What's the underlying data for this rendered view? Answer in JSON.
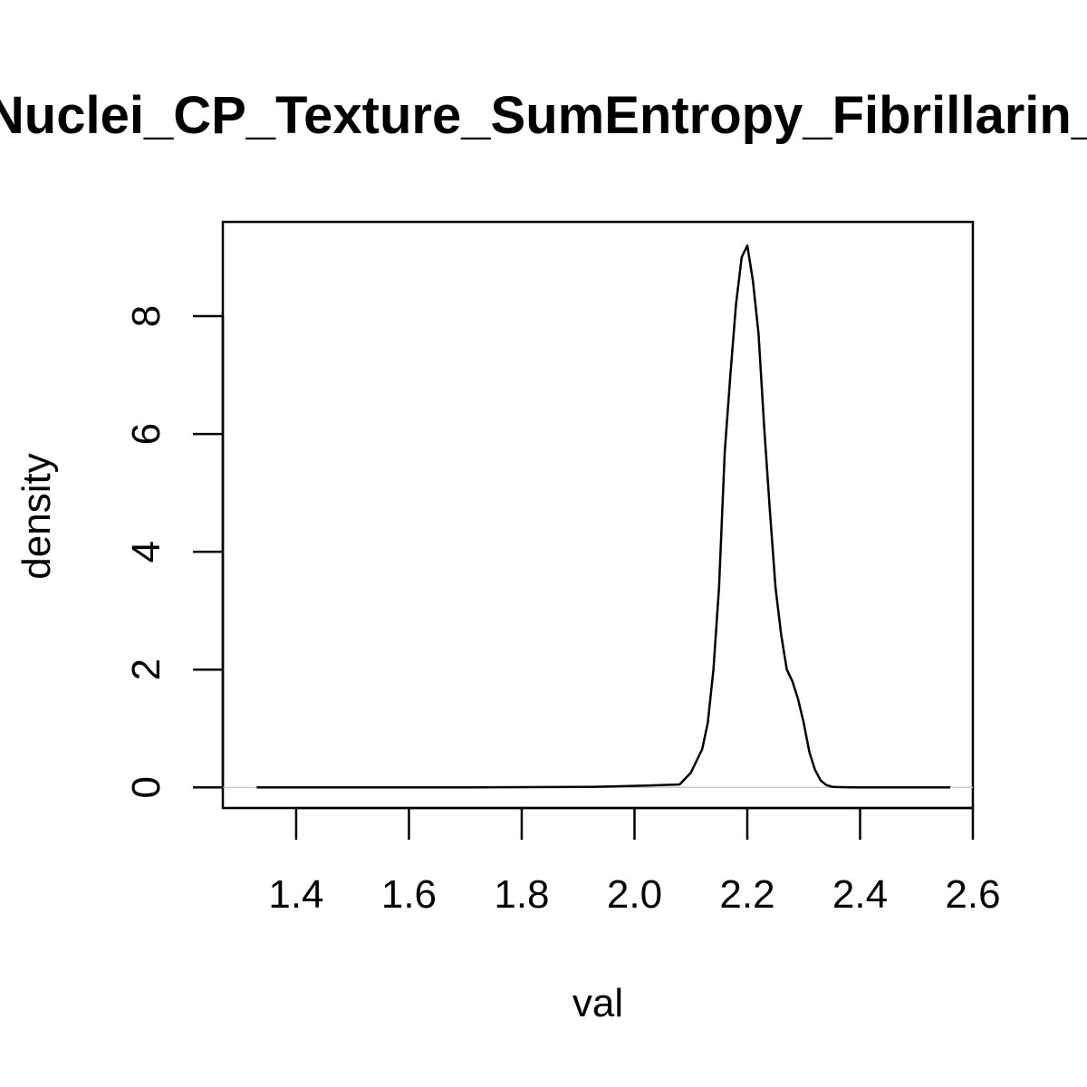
{
  "chart_data": {
    "type": "line",
    "title": "Nuclei_CP_Texture_SumEntropy_Fibrillarin_",
    "xlabel": "val",
    "ylabel": "density",
    "xlim": [
      1.27,
      2.6
    ],
    "ylim": [
      -0.35,
      9.6
    ],
    "x_ticks": [
      1.4,
      1.6,
      1.8,
      2.0,
      2.2,
      2.4,
      2.6
    ],
    "x_tick_labels": [
      "1.4",
      "1.6",
      "1.8",
      "2.0",
      "2.2",
      "2.4",
      "2.6"
    ],
    "y_ticks": [
      0,
      2,
      4,
      6,
      8
    ],
    "y_tick_labels": [
      "0",
      "2",
      "4",
      "6",
      "8"
    ],
    "grid": false,
    "zero_line": true,
    "colors": {
      "line": "#000000",
      "zero_line": "#cccccc",
      "frame": "#000000"
    },
    "series": [
      {
        "x": [
          1.33,
          1.5,
          1.7,
          1.85,
          1.93,
          1.98,
          2.02,
          2.05,
          2.08,
          2.1,
          2.12,
          2.13,
          2.14,
          2.15,
          2.16,
          2.17,
          2.18,
          2.19,
          2.2,
          2.21,
          2.22,
          2.23,
          2.24,
          2.25,
          2.26,
          2.27,
          2.28,
          2.29,
          2.3,
          2.31,
          2.32,
          2.33,
          2.34,
          2.35,
          2.36,
          2.38,
          2.4,
          2.45,
          2.5,
          2.56
        ],
        "y": [
          0,
          0,
          0,
          0.005,
          0.01,
          0.02,
          0.03,
          0.04,
          0.05,
          0.25,
          0.65,
          1.1,
          2.0,
          3.4,
          5.7,
          7.0,
          8.2,
          9.0,
          9.2,
          8.6,
          7.7,
          6.1,
          4.7,
          3.4,
          2.6,
          2.0,
          1.8,
          1.5,
          1.1,
          0.6,
          0.3,
          0.12,
          0.04,
          0.01,
          0.005,
          0.002,
          0.001,
          0,
          0,
          0
        ]
      }
    ]
  }
}
